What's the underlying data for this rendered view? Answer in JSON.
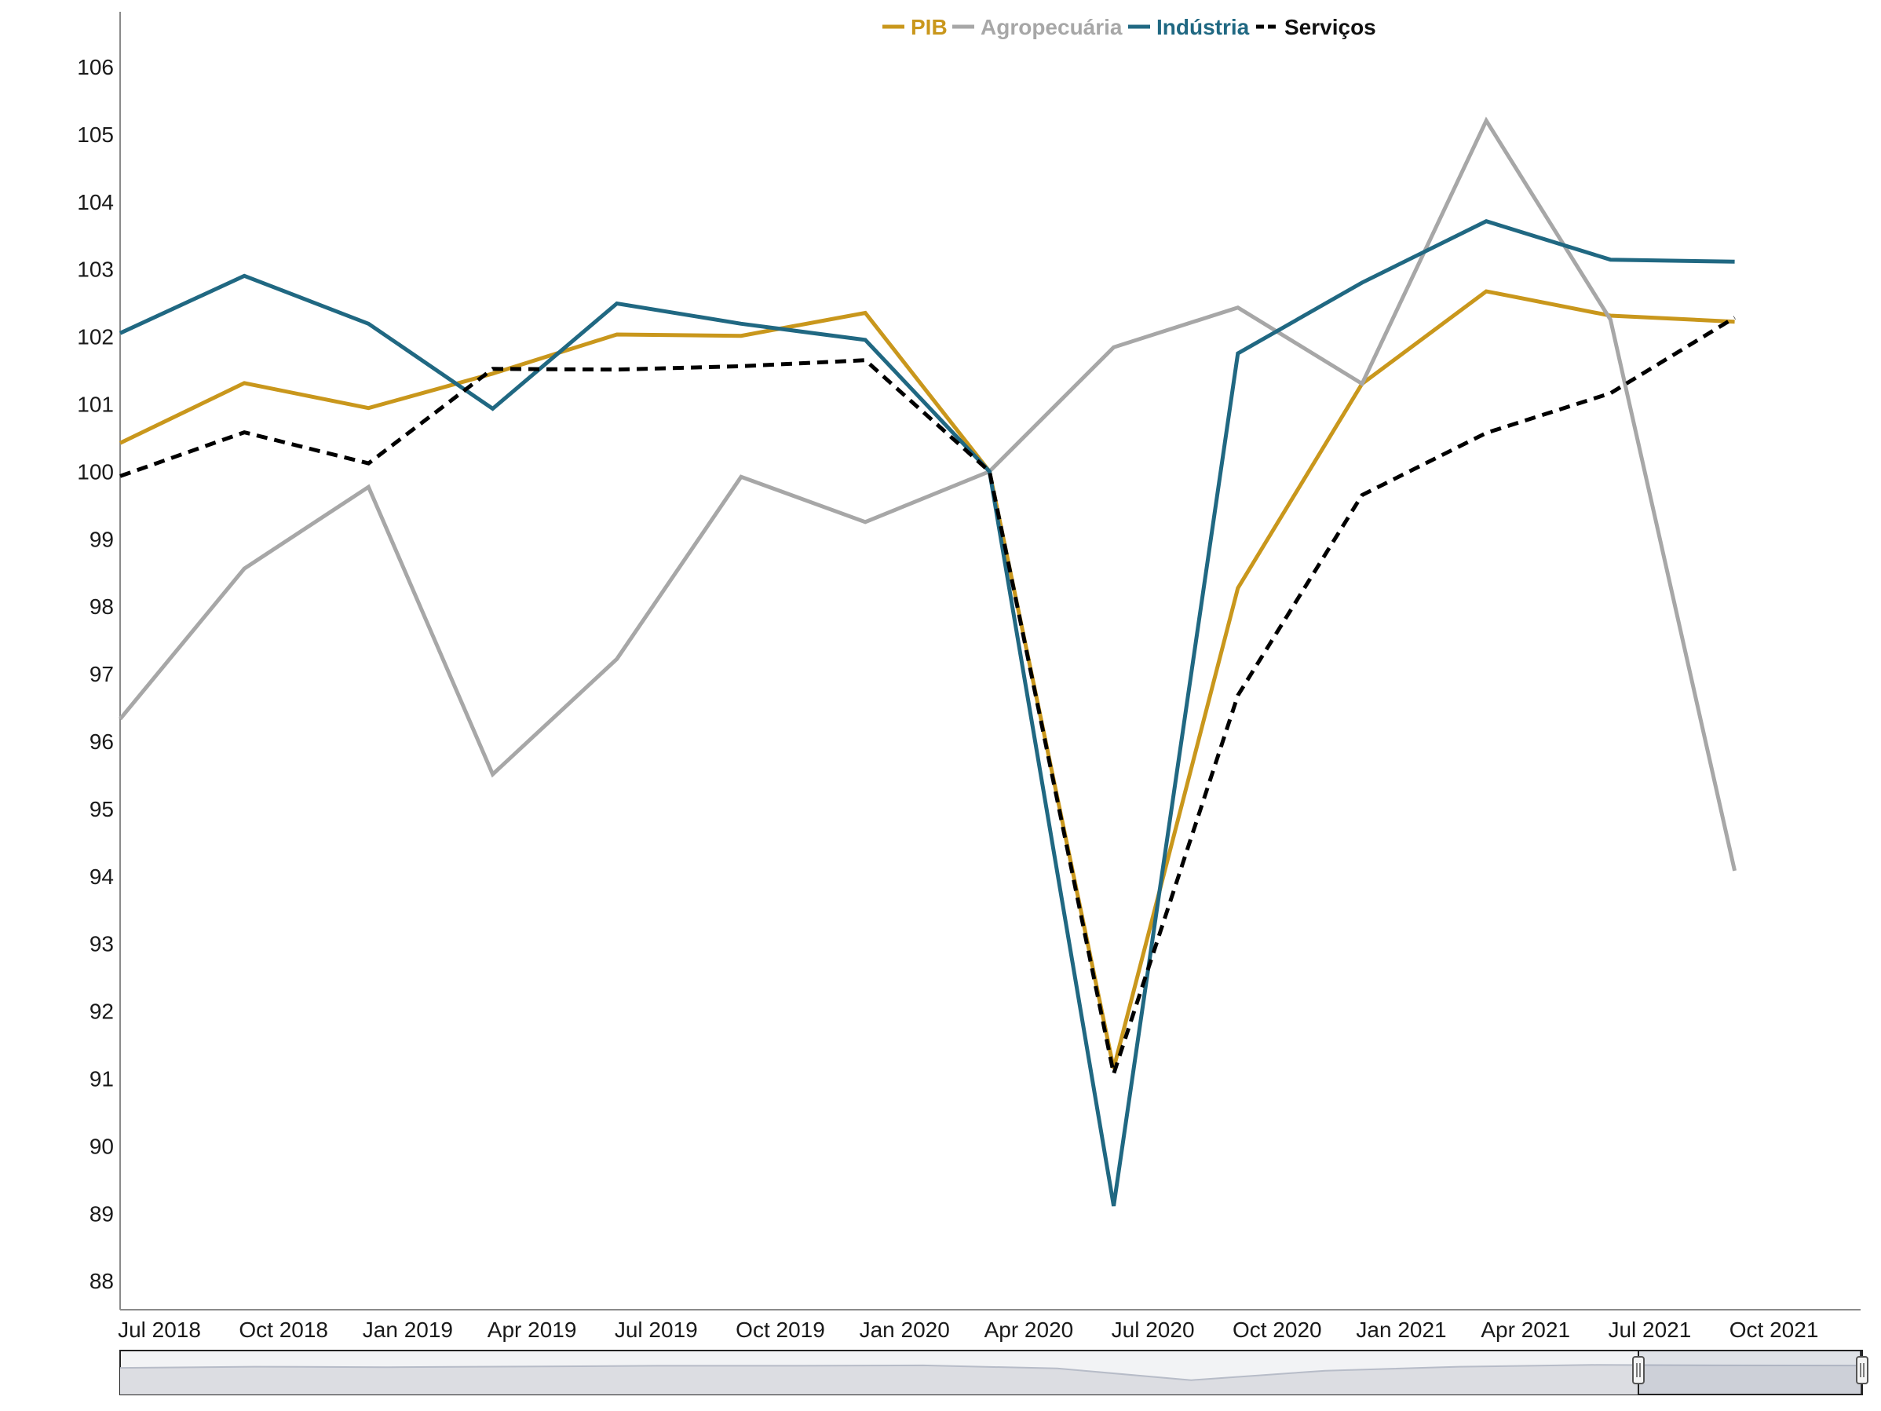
{
  "chart_data": {
    "type": "line",
    "title": "",
    "xlabel": "",
    "ylabel": "",
    "x_ticks": [
      "Jul 2018",
      "Oct 2018",
      "Jan 2019",
      "Apr 2019",
      "Jul 2019",
      "Oct 2019",
      "Jan 2020",
      "Apr 2020",
      "Jul 2020",
      "Oct 2020",
      "Jan 2021",
      "Apr 2021",
      "Jul 2021",
      "Oct 2021"
    ],
    "x": [
      "Jul 2018",
      "Oct 2018",
      "Jan 2019",
      "Apr 2019",
      "Jul 2019",
      "Oct 2019",
      "Jan 2020",
      "Apr 2020",
      "Jul 2020",
      "Oct 2020",
      "Jan 2021",
      "Apr 2021",
      "Jul 2021",
      "Oct 2021"
    ],
    "y_ticks": [
      88,
      89,
      90,
      91,
      92,
      93,
      94,
      95,
      96,
      97,
      98,
      99,
      100,
      101,
      102,
      103,
      104,
      105,
      106
    ],
    "ylim": [
      87.6,
      106.8
    ],
    "grid": false,
    "legend_position": "top-center",
    "series": [
      {
        "name": "PIB",
        "color": "#c9971c",
        "dash": "solid",
        "values": [
          100.42,
          101.31,
          100.94,
          101.45,
          102.03,
          102.01,
          102.35,
          100.0,
          91.15,
          98.27,
          101.3,
          102.67,
          102.31,
          102.22
        ]
      },
      {
        "name": "Agropecuária",
        "color": "#a7a7a7",
        "dash": "solid",
        "values": [
          96.33,
          98.56,
          99.77,
          95.51,
          97.22,
          99.92,
          99.25,
          100.0,
          101.84,
          102.43,
          101.3,
          105.2,
          102.25,
          94.08
        ]
      },
      {
        "name": "Indústria",
        "color": "#206882",
        "dash": "solid",
        "values": [
          102.05,
          102.9,
          102.19,
          100.93,
          102.49,
          102.19,
          101.95,
          100.0,
          89.11,
          101.75,
          102.8,
          103.71,
          103.14,
          103.11
        ]
      },
      {
        "name": "Serviços",
        "color": "#000000",
        "dash": "dashed",
        "values": [
          99.93,
          100.58,
          100.12,
          101.52,
          101.51,
          101.56,
          101.65,
          100.0,
          91.07,
          96.68,
          99.65,
          100.57,
          101.16,
          102.28
        ]
      }
    ],
    "navigator": {
      "shown": true,
      "selected_range": [
        "Jul 2018",
        "Oct 2021"
      ]
    }
  }
}
